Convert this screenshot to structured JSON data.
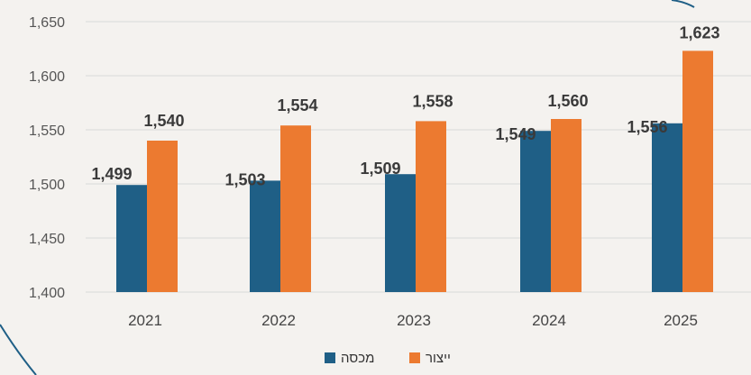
{
  "chart_data": {
    "type": "bar",
    "categories": [
      "2021",
      "2022",
      "2023",
      "2024",
      "2025"
    ],
    "series": [
      {
        "name": "מכסה",
        "values": [
          1499,
          1503,
          1509,
          1549,
          1556
        ],
        "labels": [
          "1,499",
          "1,503",
          "1,509",
          "1,549",
          "1,556"
        ],
        "color": "#1f5f86"
      },
      {
        "name": "ייצור",
        "values": [
          1540,
          1554,
          1558,
          1560,
          1623
        ],
        "labels": [
          "1,540",
          "1,554",
          "1,558",
          "1,560",
          "1,623"
        ],
        "color": "#ec7a30"
      }
    ],
    "ylim": [
      1400,
      1650
    ],
    "yticks": [
      1400,
      1450,
      1500,
      1550,
      1600,
      1650
    ],
    "ytick_labels": [
      "1,400",
      "1,450",
      "1,500",
      "1,550",
      "1,600",
      "1,650"
    ],
    "grid": true,
    "legend": "bottom",
    "title": "",
    "xlabel": "",
    "ylabel": ""
  },
  "colors": {
    "background": "#f4f2ef",
    "grid": "#d9d9d9",
    "frame_arc": "#1f5f86"
  }
}
